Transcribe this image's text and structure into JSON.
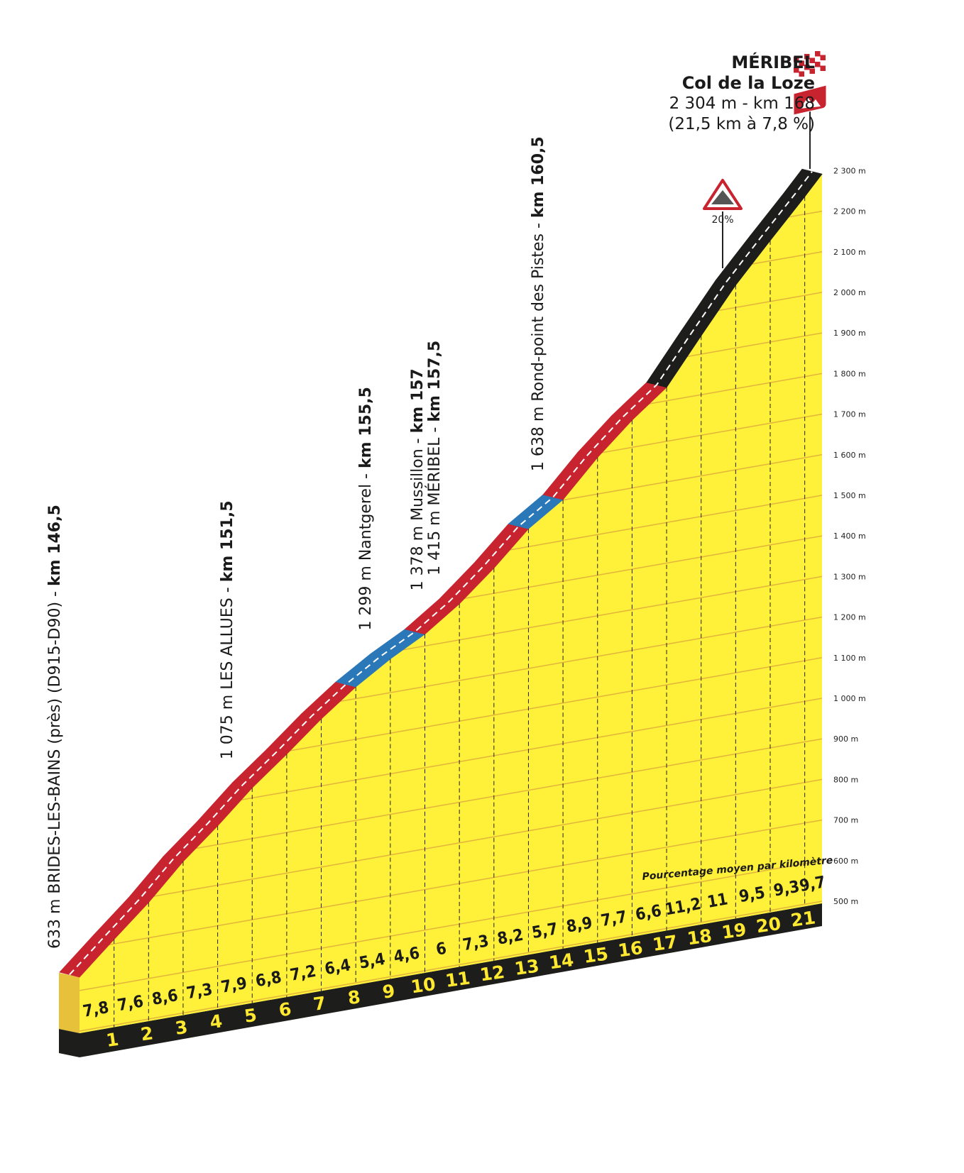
{
  "summit": {
    "name": "MÉRIBEL",
    "subtitle": "Col de la Loze",
    "altitude_km": "2 304 m - km 168",
    "climb": "(21,5 km à 7,8 %)"
  },
  "max_gradient_sign": "20%",
  "legend_caption": "Pourcentage moyen par kilomètre",
  "colors": {
    "fill": "#fff03a",
    "side": "#e8c13b",
    "base": "#1d1d1b",
    "red": "#c8242f",
    "blue": "#2a78b8",
    "black": "#1d1d1b",
    "grid": "#e2b43c"
  },
  "chart_data": {
    "type": "area",
    "title": "",
    "xlabel": "",
    "ylabel": "",
    "start_altitude_m": 633,
    "length_km": 21.5,
    "ylim": [
      500,
      2300
    ],
    "y_ticks": [
      "500 m",
      "600 m",
      "700 m",
      "800 m",
      "900 m",
      "1 000 m",
      "1 100 m",
      "1 200 m",
      "1 300 m",
      "1 400 m",
      "1 500 m",
      "1 600 m",
      "1 700 m",
      "1 800 m",
      "1 900 m",
      "2 000 m",
      "2 100 m",
      "2 200 m",
      "2 300 m"
    ],
    "y_tick_values": [
      500,
      600,
      700,
      800,
      900,
      1000,
      1100,
      1200,
      1300,
      1400,
      1500,
      1600,
      1700,
      1800,
      1900,
      2000,
      2100,
      2200,
      2300
    ],
    "km_ticks": [
      "1",
      "2",
      "3",
      "4",
      "5",
      "6",
      "7",
      "8",
      "9",
      "10",
      "11",
      "12",
      "13",
      "14",
      "15",
      "16",
      "17",
      "18",
      "19",
      "20",
      "21"
    ],
    "segment_gradients": [
      "7,8",
      "7,6",
      "8,6",
      "7,3",
      "7,9",
      "6,8",
      "7,2",
      "6,4",
      "5,4",
      "4,6",
      "6",
      "7,3",
      "8,2",
      "5,7",
      "8,9",
      "7,7",
      "6,6",
      "11,2",
      "11",
      "9,5",
      "9,3",
      "9,7"
    ],
    "segment_values": [
      7.8,
      7.6,
      8.6,
      7.3,
      7.9,
      6.8,
      7.2,
      6.4,
      5.4,
      4.6,
      6,
      7.3,
      8.2,
      5.7,
      8.9,
      7.7,
      6.6,
      11.2,
      11,
      9.5,
      9.3,
      9.7
    ],
    "segment_colors": [
      "red",
      "red",
      "red",
      "red",
      "red",
      "red",
      "red",
      "red",
      "blue",
      "blue",
      "red",
      "red",
      "red",
      "blue",
      "red",
      "red",
      "red",
      "black",
      "black",
      "black",
      "black",
      "black"
    ],
    "annotations": [
      {
        "km": 0,
        "plain": "633 m BRIDES-LES-BAINS (près) (D915-D90) - ",
        "bold": "km 146,5"
      },
      {
        "km": 5,
        "plain": "1 075 m LES ALLUES - ",
        "bold": "km 151,5"
      },
      {
        "km": 9,
        "plain": "1 299 m Nantgerel - ",
        "bold": "km 155,5"
      },
      {
        "km": 10.5,
        "plain": "1 378 m Mussillon - ",
        "bold": "km 157"
      },
      {
        "km": 11,
        "plain": "1 415 m MÉRIBEL - ",
        "bold": "km 157,5"
      },
      {
        "km": 14,
        "plain": "1 638 m Rond-point des Pistes - ",
        "bold": "km 160,5"
      }
    ]
  }
}
